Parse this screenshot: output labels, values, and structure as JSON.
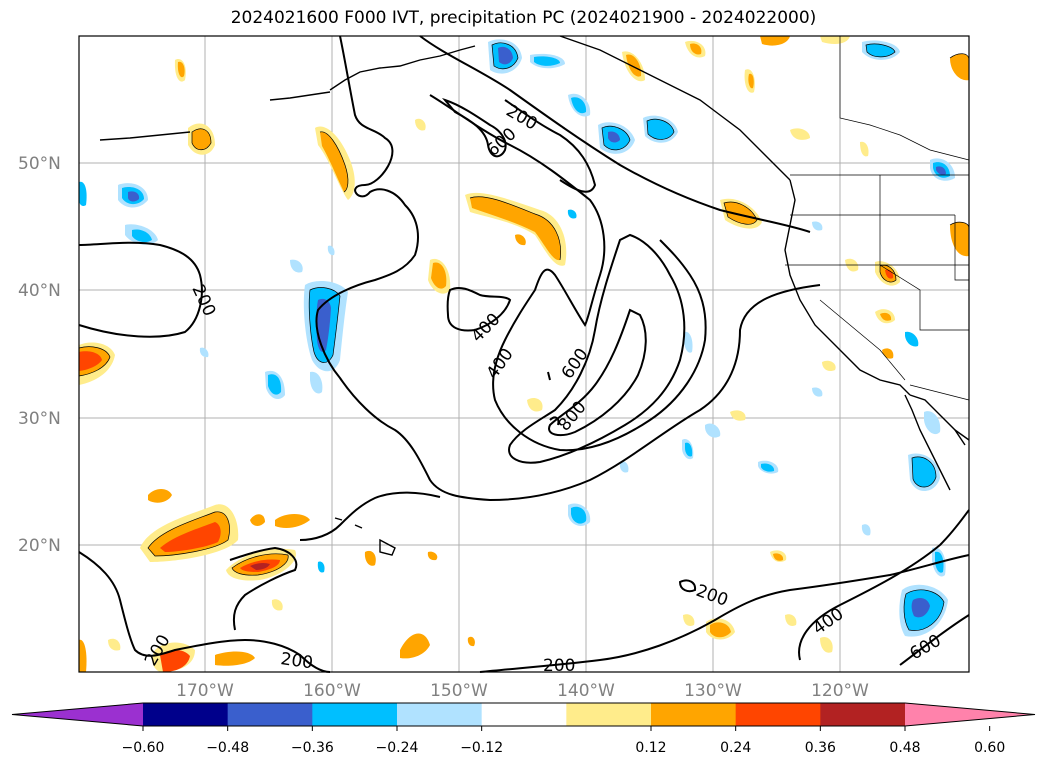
{
  "title": "2024021600 F000 IVT, precipitation PC (2024021900 - 2024022000)",
  "lat_labels": [
    "50°N",
    "40°N",
    "30°N",
    "20°N"
  ],
  "lon_labels": [
    "170°W",
    "160°W",
    "150°W",
    "140°W",
    "130°W",
    "120°W"
  ],
  "colorbar": {
    "ticks": [
      "−0.60",
      "−0.48",
      "−0.36",
      "−0.24",
      "−0.12",
      "0.12",
      "0.24",
      "0.36",
      "0.48",
      "0.60"
    ],
    "colors": [
      "#9b30d0",
      "#00008b",
      "#3a5fcd",
      "#00bfff",
      "#b0e2ff",
      "#ffffff",
      "#ffec8b",
      "#ffa500",
      "#ff4500",
      "#b22222",
      "#ff82ab"
    ]
  },
  "contour_labels": [
    "200",
    "600",
    "200",
    "400",
    "400",
    "600",
    "800",
    "200",
    "400",
    "600",
    "200",
    "200",
    "200"
  ],
  "colors": {
    "grid": "#b0b0b0",
    "coast": "#000000"
  }
}
